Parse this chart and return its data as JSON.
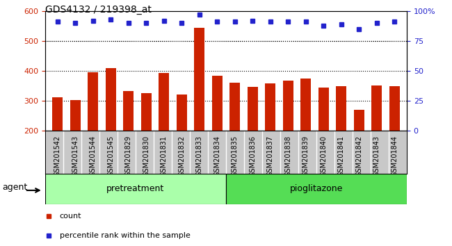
{
  "title": "GDS4132 / 219398_at",
  "categories": [
    "GSM201542",
    "GSM201543",
    "GSM201544",
    "GSM201545",
    "GSM201829",
    "GSM201830",
    "GSM201831",
    "GSM201832",
    "GSM201833",
    "GSM201834",
    "GSM201835",
    "GSM201836",
    "GSM201837",
    "GSM201838",
    "GSM201839",
    "GSM201840",
    "GSM201841",
    "GSM201842",
    "GSM201843",
    "GSM201844"
  ],
  "bar_values": [
    310,
    302,
    395,
    408,
    333,
    325,
    392,
    320,
    543,
    383,
    360,
    345,
    357,
    368,
    373,
    343,
    348,
    268,
    350,
    348
  ],
  "percentile_values": [
    91,
    90,
    92,
    93,
    90,
    90,
    92,
    90,
    97,
    91,
    91,
    92,
    91,
    91,
    91,
    88,
    89,
    85,
    90,
    91
  ],
  "group_labels": [
    "pretreatment",
    "pioglitazone"
  ],
  "group_split": 10,
  "group_colors": [
    "#aaffaa",
    "#55dd55"
  ],
  "bar_color": "#CC2200",
  "dot_color": "#2222CC",
  "ylim_left": [
    200,
    600
  ],
  "ylim_right": [
    0,
    100
  ],
  "yticks_left": [
    200,
    300,
    400,
    500,
    600
  ],
  "yticks_right": [
    0,
    25,
    50,
    75,
    100
  ],
  "ylabel_right_ticks": [
    "0",
    "25",
    "50",
    "75",
    "100%"
  ],
  "grid_values": [
    300,
    400,
    500
  ],
  "agent_label": "agent",
  "legend_items": [
    "count",
    "percentile rank within the sample"
  ],
  "xtick_bg_color": "#c8c8c8",
  "plot_bg_color": "#ffffff"
}
